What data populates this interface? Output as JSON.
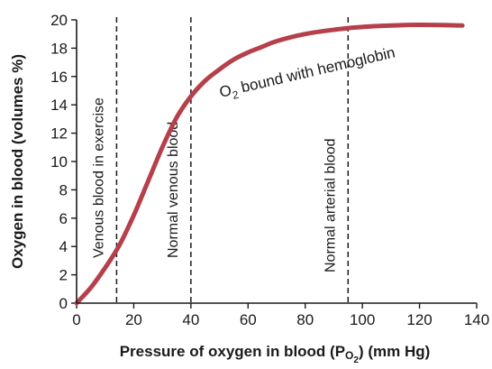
{
  "chart_data": {
    "type": "line",
    "xlabel_main": "Pressure of oxygen in blood (P",
    "xlabel_sub": "O",
    "xlabel_subsub": "2",
    "xlabel_tail": ") (mm Hg)",
    "ylabel": "Oxygen in blood (volumes %)",
    "xlim": [
      0,
      140
    ],
    "ylim": [
      0,
      20
    ],
    "x_ticks": [
      "0",
      "20",
      "40",
      "60",
      "80",
      "100",
      "120",
      "140"
    ],
    "y_ticks": [
      "0",
      "2",
      "4",
      "6",
      "8",
      "10",
      "12",
      "14",
      "16",
      "18",
      "20"
    ],
    "grid": false,
    "series": [
      {
        "label_main": "O",
        "label_sub": "2",
        "label_tail": " bound with hemoglobin",
        "color": "#b5404a",
        "x": [
          0,
          5,
          10,
          15,
          20,
          25,
          30,
          35,
          40,
          45,
          50,
          55,
          60,
          65,
          70,
          80,
          90,
          100,
          110,
          120,
          135
        ],
        "y": [
          0,
          1.1,
          2.5,
          4.1,
          6.2,
          8.6,
          11.0,
          13.1,
          14.6,
          15.7,
          16.5,
          17.2,
          17.7,
          18.1,
          18.5,
          19.0,
          19.3,
          19.5,
          19.6,
          19.65,
          19.6
        ]
      }
    ],
    "reference_lines": [
      {
        "x": 14,
        "label": "Venous blood in exercise"
      },
      {
        "x": 40,
        "label": "Normal venous blood"
      },
      {
        "x": 95,
        "label": "Normal arterial blood"
      }
    ]
  }
}
